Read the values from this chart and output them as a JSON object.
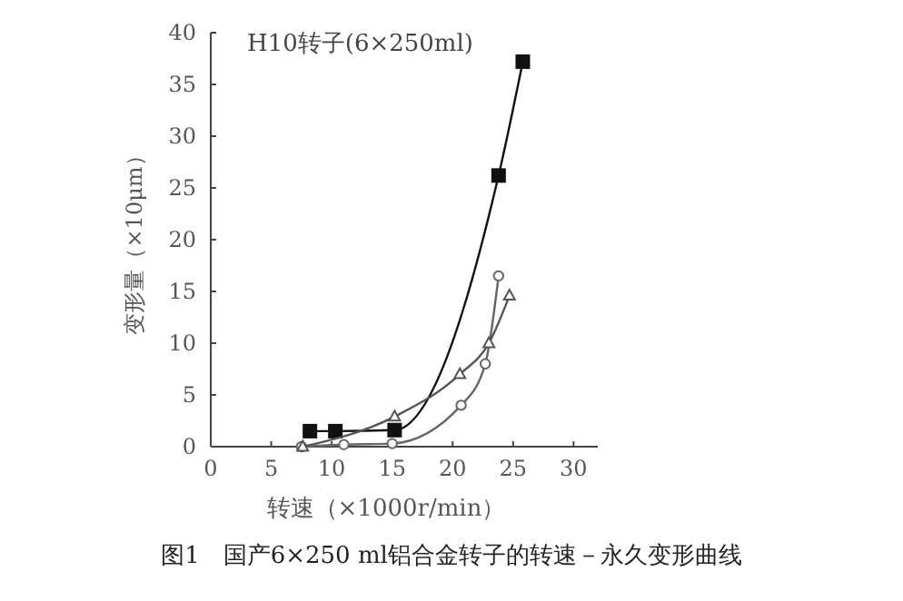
{
  "chart_data": {
    "type": "line",
    "title": "H10转子(6×250ml)",
    "xlabel": "转速（×1000r/min）",
    "ylabel": "变形量（×10μm）",
    "annotations": [
      "图1　国产6×250 ml铝合金转子的转速－永久变形曲线"
    ],
    "xlim": [
      0,
      32
    ],
    "xticks": [
      0,
      5,
      10,
      15,
      20,
      25,
      30
    ],
    "ylim": [
      0,
      40
    ],
    "yticks": [
      0,
      5,
      10,
      15,
      20,
      25,
      30,
      35,
      40
    ],
    "grid": false,
    "series": [
      {
        "color": "#111111",
        "marker": "square",
        "x": [
          8.2,
          10.3,
          15.2,
          23.8,
          25.8
        ],
        "values": [
          1.5,
          1.5,
          1.6,
          26.2,
          37.2
        ]
      },
      {
        "color": "#666666",
        "marker": "circle",
        "x": [
          7.5,
          11,
          15,
          20.7,
          22.7,
          23.8
        ],
        "values": [
          0,
          0.2,
          0.3,
          4.0,
          8.0,
          16.5
        ]
      },
      {
        "color": "#555555",
        "marker": "triangle",
        "x": [
          7.6,
          15.2,
          20.6,
          23.0,
          24.7
        ],
        "values": [
          0,
          2.9,
          7.0,
          10.0,
          14.6
        ]
      }
    ]
  }
}
